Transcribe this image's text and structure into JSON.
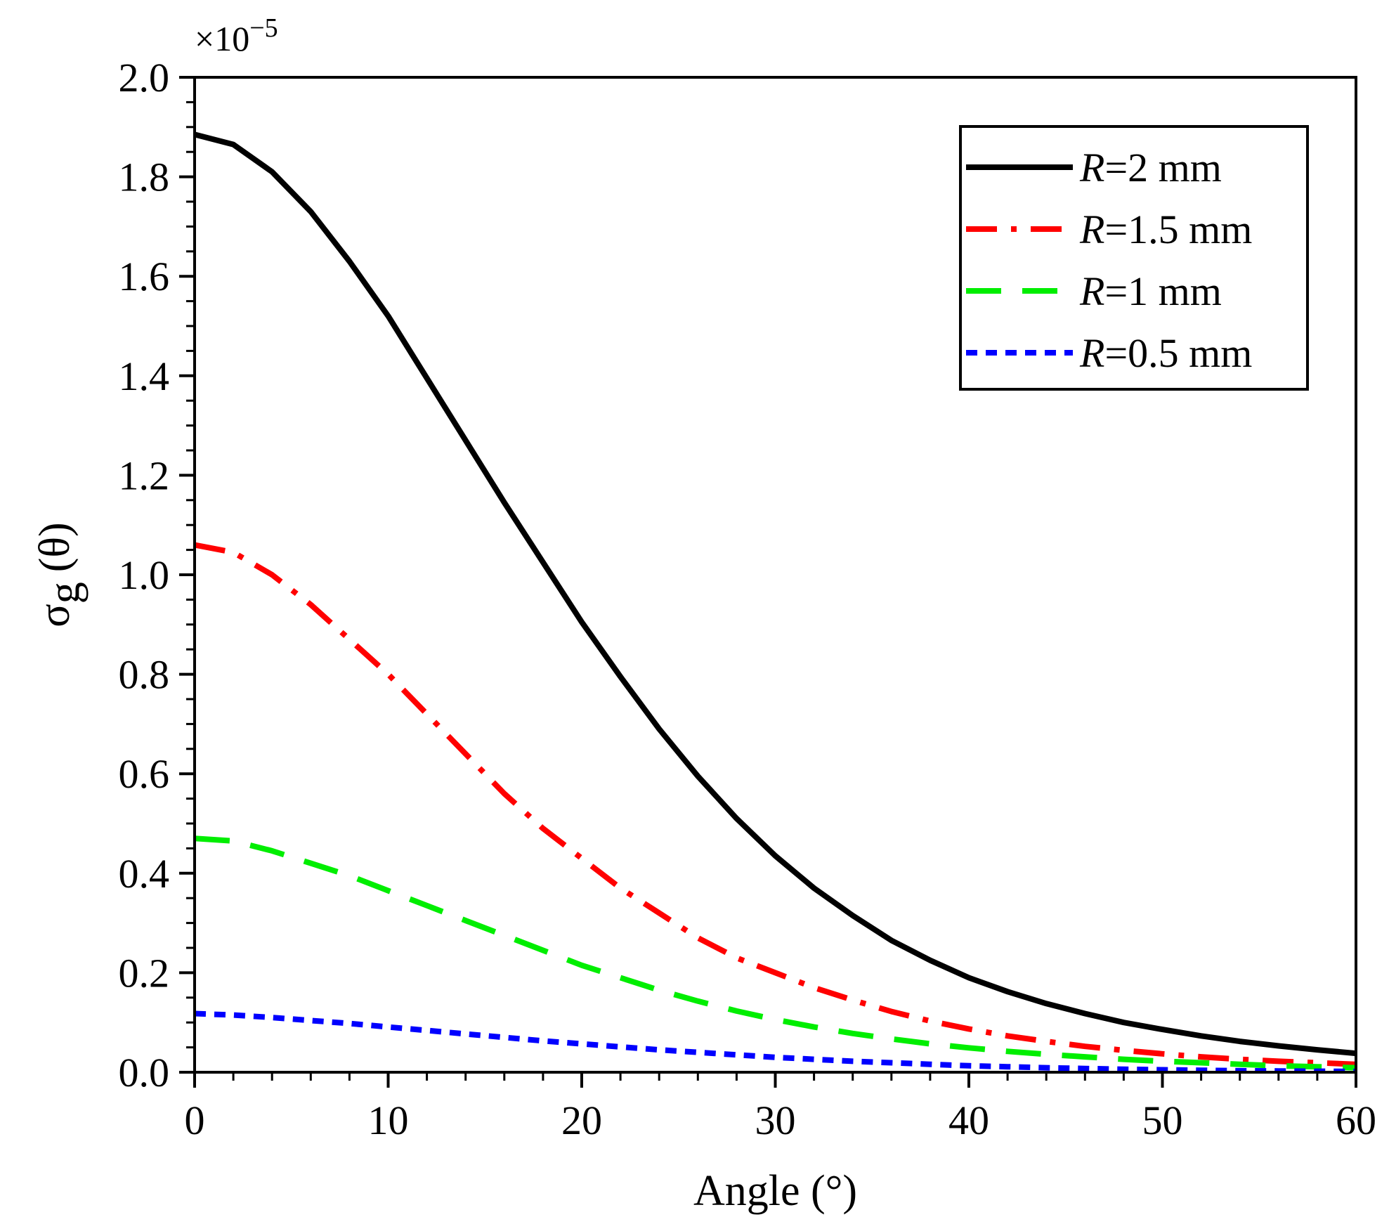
{
  "chart_data": {
    "type": "line",
    "title": "",
    "xlabel": "Angle (°)",
    "ylabel": {
      "symbol": "σ",
      "subscript": "g",
      "argument": "(θ)"
    },
    "y_multiplier": {
      "base": "×10",
      "exponent": "−5"
    },
    "xlim": [
      0,
      60
    ],
    "ylim": [
      0,
      2.0
    ],
    "x_ticks": [
      0,
      10,
      20,
      30,
      40,
      50,
      60
    ],
    "x_tick_labels": [
      "0",
      "10",
      "20",
      "30",
      "40",
      "50",
      "60"
    ],
    "y_ticks": [
      0,
      0.2,
      0.4,
      0.6,
      0.8,
      1.0,
      1.2,
      1.4,
      1.6,
      1.8,
      2.0
    ],
    "y_tick_labels": [
      "0.0",
      "0.2",
      "0.4",
      "0.6",
      "0.8",
      "1.0",
      "1.2",
      "1.4",
      "1.6",
      "1.8",
      "2.0"
    ],
    "grid": false,
    "legend_position": "top-right",
    "x": [
      0,
      2,
      4,
      6,
      8,
      10,
      12,
      14,
      16,
      18,
      20,
      22,
      24,
      26,
      28,
      30,
      32,
      34,
      36,
      38,
      40,
      42,
      44,
      46,
      48,
      50,
      52,
      54,
      56,
      58,
      60
    ],
    "series": [
      {
        "name_italic": "R",
        "name_rest": "=2 mm",
        "color": "#000000",
        "dash": "solid",
        "values": [
          1.885,
          1.865,
          1.81,
          1.73,
          1.63,
          1.52,
          1.395,
          1.27,
          1.145,
          1.025,
          0.905,
          0.795,
          0.69,
          0.595,
          0.51,
          0.435,
          0.37,
          0.315,
          0.265,
          0.225,
          0.19,
          0.162,
          0.138,
          0.118,
          0.1,
          0.086,
          0.073,
          0.062,
          0.053,
          0.045,
          0.038
        ]
      },
      {
        "name_italic": "R",
        "name_rest": "=1.5 mm",
        "color": "#ff0000",
        "dash": "dash-dot",
        "values": [
          1.06,
          1.045,
          1.0,
          0.94,
          0.87,
          0.8,
          0.72,
          0.64,
          0.56,
          0.49,
          0.43,
          0.37,
          0.32,
          0.27,
          0.23,
          0.2,
          0.17,
          0.145,
          0.122,
          0.103,
          0.087,
          0.073,
          0.062,
          0.052,
          0.044,
          0.037,
          0.031,
          0.026,
          0.022,
          0.019,
          0.016
        ]
      },
      {
        "name_italic": "R",
        "name_rest": "=1 mm",
        "color": "#00ee00",
        "dash": "dash",
        "values": [
          0.47,
          0.465,
          0.445,
          0.42,
          0.395,
          0.365,
          0.335,
          0.305,
          0.275,
          0.245,
          0.215,
          0.19,
          0.165,
          0.143,
          0.123,
          0.106,
          0.091,
          0.078,
          0.067,
          0.057,
          0.049,
          0.042,
          0.036,
          0.031,
          0.026,
          0.022,
          0.019,
          0.016,
          0.013,
          0.011,
          0.009
        ]
      },
      {
        "name_italic": "R",
        "name_rest": "=0.5 mm",
        "color": "#0000ff",
        "dash": "dot",
        "values": [
          0.118,
          0.115,
          0.11,
          0.104,
          0.098,
          0.091,
          0.084,
          0.077,
          0.07,
          0.063,
          0.057,
          0.051,
          0.045,
          0.04,
          0.035,
          0.03,
          0.026,
          0.022,
          0.019,
          0.016,
          0.013,
          0.011,
          0.009,
          0.0075,
          0.006,
          0.005,
          0.004,
          0.003,
          0.0025,
          0.002,
          0.0015
        ]
      }
    ]
  }
}
